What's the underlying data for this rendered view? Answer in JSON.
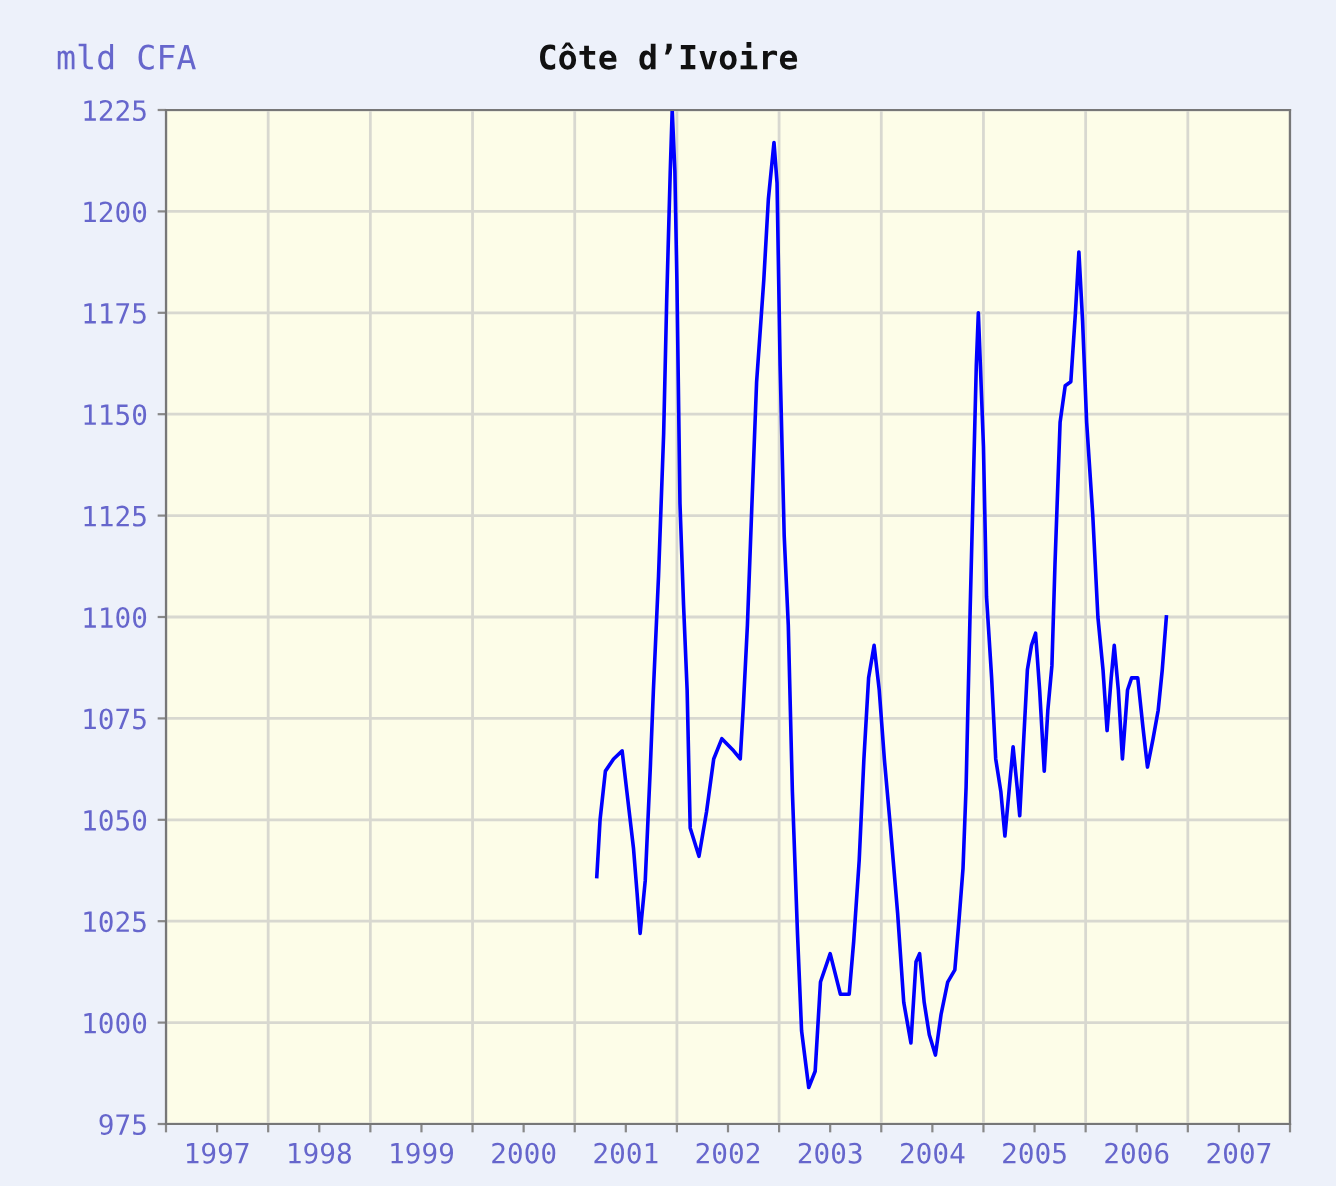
{
  "chart_data": {
    "type": "line",
    "title": "Côte d’Ivoire",
    "ylabel": "mld CFA",
    "x": [
      2001.216,
      2001.248,
      2001.3,
      2001.38,
      2001.464,
      2001.51,
      2001.575,
      2001.61,
      2001.64,
      2001.69,
      2001.74,
      2001.77,
      2001.82,
      2001.87,
      2001.9,
      2001.935,
      2001.954,
      2001.98,
      2002.0,
      2002.03,
      2002.065,
      2002.1,
      2002.13,
      2002.216,
      2002.29,
      2002.36,
      2002.44,
      2002.555,
      2002.62,
      2002.65,
      2002.69,
      2002.73,
      2002.78,
      2002.85,
      2002.895,
      2002.95,
      2002.98,
      2003.01,
      2003.05,
      2003.09,
      2003.13,
      2003.18,
      2003.22,
      2003.29,
      2003.353,
      2003.405,
      2003.5,
      2003.6,
      2003.686,
      2003.73,
      2003.784,
      2003.83,
      2003.876,
      2003.93,
      2003.98,
      2004.03,
      2004.09,
      2004.16,
      2004.22,
      2004.29,
      2004.34,
      2004.375,
      2004.42,
      2004.47,
      2004.53,
      2004.585,
      2004.65,
      2004.72,
      2004.76,
      2004.8,
      2004.83,
      2004.87,
      2004.9,
      2004.93,
      2004.95,
      2004.97,
      2005.0,
      2005.03,
      2005.08,
      2005.12,
      2005.17,
      2005.21,
      2005.25,
      2005.29,
      2005.33,
      2005.355,
      2005.39,
      2005.43,
      2005.47,
      2005.51,
      2005.55,
      2005.595,
      2005.63,
      2005.67,
      2005.7,
      2005.75,
      2005.8,
      2005.855,
      2005.9,
      2005.934,
      2005.97,
      2006.01,
      2006.07,
      2006.12,
      2006.17,
      2006.21,
      2006.25,
      2006.28,
      2006.32,
      2006.36,
      2006.41,
      2006.45,
      2006.51,
      2006.56,
      2006.605,
      2006.66,
      2006.71,
      2006.75,
      2006.79
    ],
    "series": [
      {
        "color": "#0000ff",
        "values": [
          1036,
          1050,
          1062,
          1065,
          1067,
          1057,
          1043,
          1032,
          1022,
          1035,
          1063,
          1082,
          1110,
          1145,
          1178,
          1210,
          1225,
          1210,
          1183,
          1128,
          1103,
          1082,
          1048,
          1041,
          1052,
          1065,
          1070,
          1067,
          1065,
          1078,
          1098,
          1125,
          1158,
          1183,
          1203,
          1217,
          1207,
          1162,
          1120,
          1098,
          1057,
          1022,
          998,
          984,
          988,
          1010,
          1017,
          1007,
          1007,
          1020,
          1040,
          1065,
          1085,
          1093,
          1082,
          1065,
          1048,
          1027,
          1005,
          995,
          1015,
          1017,
          1005,
          997,
          992,
          1002,
          1010,
          1013,
          1025,
          1038,
          1058,
          1102,
          1132,
          1162,
          1175,
          1162,
          1142,
          1105,
          1085,
          1065,
          1057,
          1046,
          1057,
          1068,
          1058,
          1051,
          1068,
          1087,
          1093,
          1096,
          1082,
          1062,
          1077,
          1088,
          1113,
          1148,
          1157,
          1158,
          1175,
          1190,
          1173,
          1148,
          1125,
          1100,
          1087,
          1072,
          1085,
          1093,
          1082,
          1065,
          1082,
          1085,
          1085,
          1073,
          1063,
          1070,
          1077,
          1087,
          1100
        ]
      }
    ],
    "xlim": [
      1997,
      2008
    ],
    "xticks": [
      {
        "value": 1997,
        "label": null
      },
      {
        "value": 1997.5,
        "label": "1997"
      },
      {
        "value": 1998,
        "label": null
      },
      {
        "value": 1998.5,
        "label": "1998"
      },
      {
        "value": 1999,
        "label": null
      },
      {
        "value": 1999.5,
        "label": "1999"
      },
      {
        "value": 2000,
        "label": null
      },
      {
        "value": 2000.5,
        "label": "2000"
      },
      {
        "value": 2001,
        "label": null
      },
      {
        "value": 2001.5,
        "label": "2001"
      },
      {
        "value": 2002,
        "label": null
      },
      {
        "value": 2002.5,
        "label": "2002"
      },
      {
        "value": 2003,
        "label": null
      },
      {
        "value": 2003.5,
        "label": "2003"
      },
      {
        "value": 2004,
        "label": null
      },
      {
        "value": 2004.5,
        "label": "2004"
      },
      {
        "value": 2005,
        "label": null
      },
      {
        "value": 2005.5,
        "label": "2005"
      },
      {
        "value": 2006,
        "label": null
      },
      {
        "value": 2006.5,
        "label": "2006"
      },
      {
        "value": 2007,
        "label": null
      },
      {
        "value": 2007.5,
        "label": "2007"
      },
      {
        "value": 2008,
        "label": null
      }
    ],
    "ylim": [
      975,
      1225
    ],
    "yticks": [
      975,
      1000,
      1025,
      1050,
      1075,
      1100,
      1125,
      1150,
      1175,
      1200,
      1225
    ],
    "grid": true,
    "marker": "none",
    "line_style": "solid",
    "legend": false
  }
}
